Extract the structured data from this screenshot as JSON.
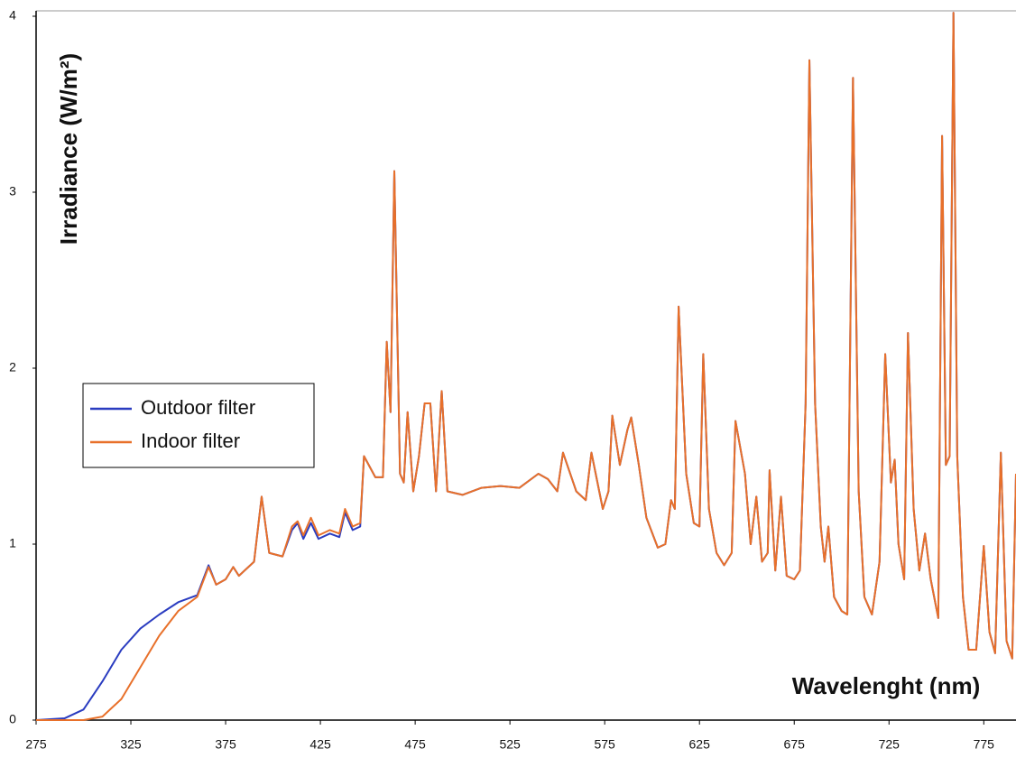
{
  "chart_data": {
    "type": "line",
    "y_label": "Irradiance (W/m²)",
    "x_label": "Wavelenght (nm)",
    "x": [
      275,
      290,
      300,
      310,
      320,
      330,
      340,
      350,
      360,
      366,
      370,
      375,
      379,
      382,
      390,
      394,
      398,
      405,
      410,
      413,
      416,
      420,
      424,
      430,
      435,
      438,
      442,
      446,
      448,
      454,
      458,
      460,
      462,
      464,
      467,
      469,
      471,
      474,
      477,
      480,
      483,
      486,
      489,
      492,
      500,
      510,
      520,
      530,
      540,
      545,
      550,
      553,
      560,
      565,
      568,
      574,
      577,
      579,
      583,
      587,
      589,
      593,
      597,
      603,
      607,
      610,
      612,
      614,
      618,
      622,
      625,
      627,
      630,
      634,
      638,
      642,
      644,
      649,
      652,
      655,
      658,
      661,
      662,
      665,
      668,
      671,
      675,
      678,
      681,
      683,
      686,
      689,
      691,
      693,
      696,
      700,
      703,
      706,
      709,
      712,
      716,
      720,
      723,
      726,
      728,
      730,
      733,
      735,
      738,
      741,
      744,
      747,
      751,
      753,
      755,
      757,
      759,
      761,
      764,
      767,
      771,
      775,
      778,
      781,
      784,
      787,
      790,
      792
    ],
    "series": [
      {
        "name": "Outdoor filter",
        "color": "#2a3cc0",
        "values": [
          0,
          0.01,
          0.06,
          0.22,
          0.4,
          0.52,
          0.6,
          0.67,
          0.71,
          0.88,
          0.77,
          0.8,
          0.87,
          0.82,
          0.9,
          1.27,
          0.95,
          0.93,
          1.08,
          1.12,
          1.03,
          1.12,
          1.03,
          1.06,
          1.04,
          1.18,
          1.08,
          1.1,
          1.5,
          1.38,
          1.38,
          2.15,
          1.75,
          3.12,
          1.4,
          1.35,
          1.75,
          1.3,
          1.5,
          1.8,
          1.8,
          1.3,
          1.87,
          1.3,
          1.28,
          1.32,
          1.33,
          1.32,
          1.4,
          1.37,
          1.3,
          1.52,
          1.3,
          1.25,
          1.52,
          1.2,
          1.3,
          1.73,
          1.45,
          1.65,
          1.72,
          1.45,
          1.15,
          0.98,
          1.0,
          1.25,
          1.2,
          2.35,
          1.4,
          1.12,
          1.1,
          2.08,
          1.2,
          0.95,
          0.88,
          0.95,
          1.7,
          1.4,
          1.0,
          1.27,
          0.9,
          0.95,
          1.42,
          0.85,
          1.27,
          0.82,
          0.8,
          0.85,
          1.8,
          3.75,
          1.8,
          1.1,
          0.9,
          1.1,
          0.7,
          0.62,
          0.6,
          3.65,
          1.3,
          0.7,
          0.6,
          0.9,
          2.08,
          1.35,
          1.48,
          1.0,
          0.8,
          2.2,
          1.2,
          0.85,
          1.06,
          0.8,
          0.58,
          3.32,
          1.45,
          1.5,
          4.02,
          1.5,
          0.7,
          0.4,
          0.4,
          0.99,
          0.5,
          0.38,
          1.52,
          0.45,
          0.35,
          1.4
        ]
      },
      {
        "name": "Indoor filter",
        "color": "#e8702a",
        "values": [
          0,
          0,
          0,
          0.02,
          0.12,
          0.3,
          0.48,
          0.62,
          0.7,
          0.87,
          0.77,
          0.8,
          0.87,
          0.82,
          0.9,
          1.27,
          0.95,
          0.93,
          1.1,
          1.13,
          1.05,
          1.15,
          1.05,
          1.08,
          1.06,
          1.2,
          1.1,
          1.12,
          1.5,
          1.38,
          1.38,
          2.15,
          1.75,
          3.12,
          1.4,
          1.35,
          1.75,
          1.3,
          1.5,
          1.8,
          1.8,
          1.3,
          1.87,
          1.3,
          1.28,
          1.32,
          1.33,
          1.32,
          1.4,
          1.37,
          1.3,
          1.52,
          1.3,
          1.25,
          1.52,
          1.2,
          1.3,
          1.73,
          1.45,
          1.65,
          1.72,
          1.45,
          1.15,
          0.98,
          1.0,
          1.25,
          1.2,
          2.35,
          1.4,
          1.12,
          1.1,
          2.08,
          1.2,
          0.95,
          0.88,
          0.95,
          1.7,
          1.4,
          1.0,
          1.27,
          0.9,
          0.95,
          1.42,
          0.85,
          1.27,
          0.82,
          0.8,
          0.85,
          1.8,
          3.75,
          1.8,
          1.1,
          0.9,
          1.1,
          0.7,
          0.62,
          0.6,
          3.65,
          1.3,
          0.7,
          0.6,
          0.9,
          2.08,
          1.35,
          1.48,
          1.0,
          0.8,
          2.2,
          1.2,
          0.85,
          1.06,
          0.8,
          0.58,
          3.32,
          1.45,
          1.5,
          4.02,
          1.5,
          0.7,
          0.4,
          0.4,
          0.99,
          0.5,
          0.38,
          1.52,
          0.45,
          0.35,
          1.4
        ]
      }
    ],
    "xlim": [
      275,
      792
    ],
    "ylim": [
      0,
      4
    ],
    "xticks": [
      275,
      325,
      375,
      425,
      475,
      525,
      575,
      625,
      675,
      725,
      775
    ],
    "yticks": [
      0,
      1,
      2,
      3,
      4
    ],
    "legend": "left"
  }
}
